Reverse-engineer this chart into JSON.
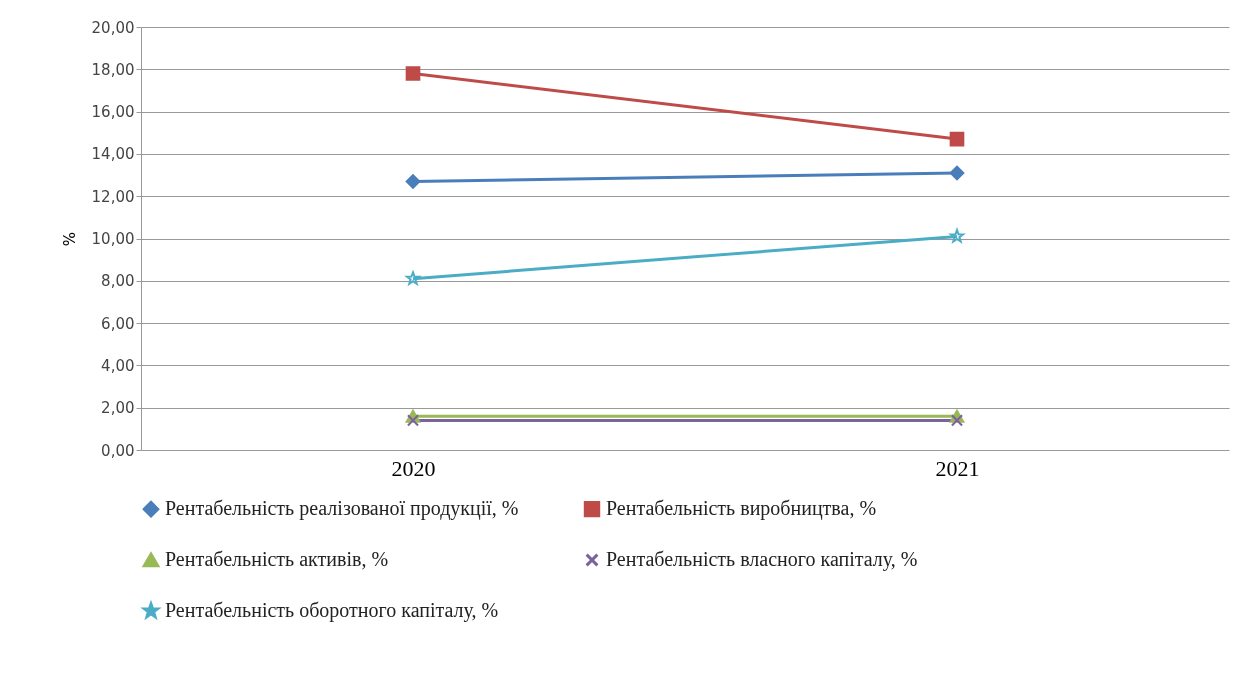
{
  "chart_data": {
    "type": "line",
    "ylabel": "%",
    "categories": [
      "2020",
      "2021"
    ],
    "series": [
      {
        "name": "Рентабельність реалізованої продукції, %",
        "color": "#4a7ebb",
        "marker": "diamond",
        "values": [
          12.7,
          13.1
        ]
      },
      {
        "name": "Рентабельність виробництва, %",
        "color": "#be4b48",
        "marker": "square",
        "values": [
          17.8,
          14.7
        ]
      },
      {
        "name": "Рентабельність активів, %",
        "color": "#98b954",
        "marker": "triangle",
        "values": [
          1.6,
          1.6
        ]
      },
      {
        "name": "Рентабельність власного капіталу, %",
        "color": "#7d60a0",
        "marker": "cross",
        "values": [
          1.4,
          1.4
        ]
      },
      {
        "name": "Рентабельність оборотного капіталу, %",
        "color": "#4bacc6",
        "marker": "star",
        "values": [
          8.1,
          10.1
        ]
      }
    ],
    "ylim": [
      0,
      20
    ],
    "yticks": [
      {
        "value": 0,
        "label": "0,00"
      },
      {
        "value": 2,
        "label": "2,00"
      },
      {
        "value": 4,
        "label": "4,00"
      },
      {
        "value": 6,
        "label": "6,00"
      },
      {
        "value": 8,
        "label": "8,00"
      },
      {
        "value": 10,
        "label": "10,00"
      },
      {
        "value": 12,
        "label": "12,00"
      },
      {
        "value": 14,
        "label": "14,00"
      },
      {
        "value": 16,
        "label": "16,00"
      },
      {
        "value": 18,
        "label": "18,00"
      },
      {
        "value": 20,
        "label": "20,00"
      }
    ],
    "grid": "y",
    "legend": "bottom",
    "line_style": "solid"
  }
}
